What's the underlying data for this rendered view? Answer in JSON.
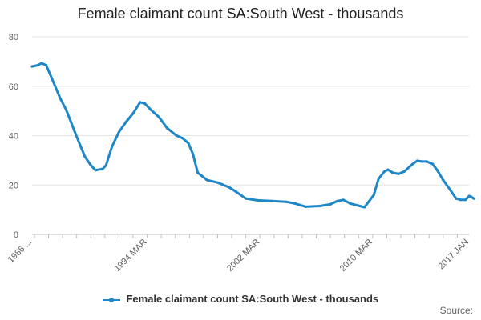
{
  "chart_data": {
    "type": "line",
    "title": "Female claimant count SA:South West - thousands",
    "xlabel": "",
    "ylabel": "",
    "ylim": [
      0,
      80
    ],
    "yticks": [
      0,
      20,
      40,
      60,
      80
    ],
    "xlim": [
      "1986-01",
      "2017-01"
    ],
    "xticks": [
      "1986 ...",
      "1994 MAR",
      "2002 MAR",
      "2010 MAR",
      "2017 JAN"
    ],
    "grid": true,
    "legend_position": "bottom",
    "series": [
      {
        "name": "Female claimant count SA:South West - thousands",
        "color": "#1f87c7",
        "points": [
          [
            "1986-01",
            68
          ],
          [
            "1986-06",
            68.5
          ],
          [
            "1986-09",
            69.3
          ],
          [
            "1987-01",
            68.5
          ],
          [
            "1987-06",
            63
          ],
          [
            "1988-01",
            55
          ],
          [
            "1988-06",
            50.5
          ],
          [
            "1989-01",
            42
          ],
          [
            "1989-06",
            36
          ],
          [
            "1989-10",
            31.5
          ],
          [
            "1990-03",
            28
          ],
          [
            "1990-07",
            26
          ],
          [
            "1991-01",
            26.5
          ],
          [
            "1991-04",
            28
          ],
          [
            "1991-09",
            35.5
          ],
          [
            "1992-03",
            41.5
          ],
          [
            "1992-09",
            45.5
          ],
          [
            "1993-03",
            49
          ],
          [
            "1993-09",
            53.5
          ],
          [
            "1994-01",
            53
          ],
          [
            "1994-06",
            50.5
          ],
          [
            "1995-01",
            47.5
          ],
          [
            "1995-08",
            43
          ],
          [
            "1996-04",
            40
          ],
          [
            "1996-09",
            39
          ],
          [
            "1997-02",
            37
          ],
          [
            "1997-06",
            32.5
          ],
          [
            "1997-10",
            25
          ],
          [
            "1998-06",
            22
          ],
          [
            "1999-03",
            21
          ],
          [
            "2000-01",
            19
          ],
          [
            "2000-06",
            17.5
          ],
          [
            "2001-03",
            14.5
          ],
          [
            "2002-01",
            13.8
          ],
          [
            "2003-01",
            13.5
          ],
          [
            "2004-01",
            13.2
          ],
          [
            "2004-09",
            12.5
          ],
          [
            "2005-06",
            11.2
          ],
          [
            "2006-06",
            11.5
          ],
          [
            "2007-03",
            12.2
          ],
          [
            "2007-09",
            13.5
          ],
          [
            "2008-02",
            14
          ],
          [
            "2008-08",
            12.5
          ],
          [
            "2009-04",
            11.5
          ],
          [
            "2009-08",
            11
          ],
          [
            "2009-12",
            13.5
          ],
          [
            "2010-04",
            16
          ],
          [
            "2010-08",
            22.5
          ],
          [
            "2011-01",
            25.5
          ],
          [
            "2011-04",
            26.2
          ],
          [
            "2011-08",
            25
          ],
          [
            "2012-01",
            24.5
          ],
          [
            "2012-06",
            25.5
          ],
          [
            "2013-01",
            28.5
          ],
          [
            "2013-05",
            29.8
          ],
          [
            "2013-09",
            29.5
          ],
          [
            "2014-01",
            29.5
          ],
          [
            "2014-06",
            28.5
          ],
          [
            "2014-10",
            26
          ],
          [
            "2015-03",
            22
          ],
          [
            "2015-09",
            18
          ],
          [
            "2016-02",
            14.5
          ],
          [
            "2016-06",
            14
          ],
          [
            "2016-10",
            14
          ],
          [
            "2017-01",
            15.5
          ],
          [
            "2017-03",
            15.2
          ],
          [
            "2017-05",
            14.5
          ]
        ]
      }
    ]
  },
  "credit": "Source:"
}
